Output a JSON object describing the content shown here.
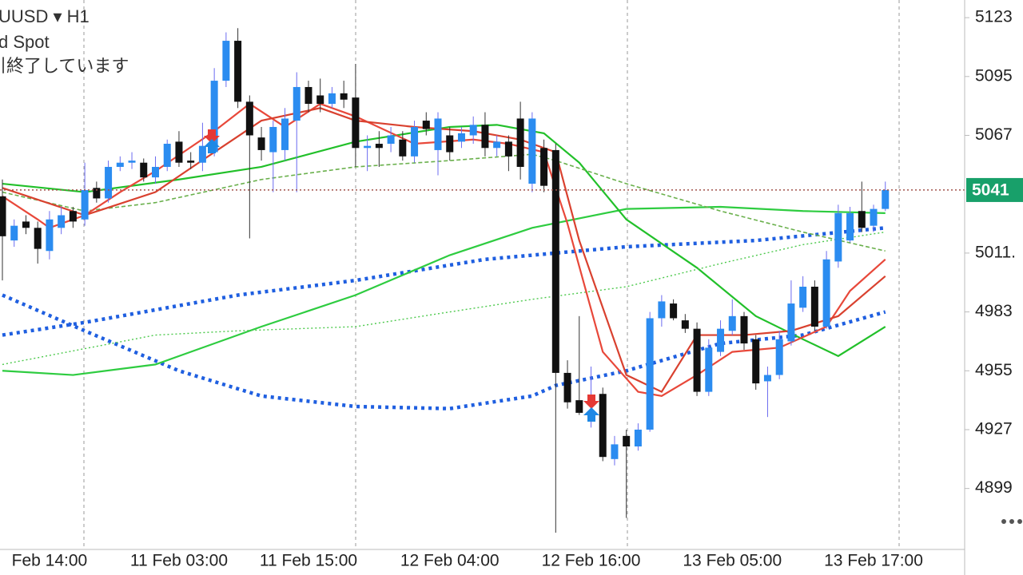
{
  "chart_data": {
    "type": "candlestick",
    "title": "UUSD ▾ H1",
    "subtitle": "d Spot",
    "status": "引終了しています",
    "categories": [
      null,
      null,
      null,
      null,
      "Feb 14:00",
      null,
      null,
      null,
      null,
      null,
      null,
      null,
      null,
      null,
      null,
      "11 Feb 03:00",
      null,
      null,
      null,
      null,
      null,
      null,
      null,
      null,
      null,
      null,
      "11 Feb 15:00",
      null,
      null,
      null,
      null,
      null,
      null,
      null,
      null,
      null,
      null,
      null,
      "12 Feb 04:00",
      null,
      null,
      null,
      null,
      null,
      null,
      null,
      null,
      null,
      null,
      null,
      "12 Feb 16:00",
      null,
      null,
      null,
      null,
      null,
      null,
      null,
      null,
      null,
      null,
      null,
      "13 Feb 05:00",
      null,
      null,
      null,
      null,
      null,
      null,
      null,
      null,
      null,
      null,
      null,
      "13 Feb 17:00",
      null
    ],
    "open": [
      5038,
      5017,
      5026,
      5023,
      5012,
      5023,
      5031,
      5027,
      5042,
      5037,
      5052,
      5054,
      5054,
      5047,
      5052,
      5064,
      5055,
      5054,
      5059,
      5093,
      5112,
      5083,
      5066,
      5059,
      5060,
      5074,
      5090,
      5086,
      5082,
      5087,
      5085,
      5061,
      5063,
      5063,
      5065,
      5057,
      5074,
      5060,
      5067,
      5064,
      5067,
      5072,
      5061,
      5064,
      5075,
      5044,
      5061,
      5060,
      4954,
      4941,
      4931,
      4944,
      4913,
      4924,
      4919,
      4927,
      4980,
      4987,
      4979,
      4975,
      4945,
      4964,
      4974,
      4981,
      4970,
      4950,
      4953,
      4969,
      4985,
      4995,
      4976,
      5007,
      5017,
      5031,
      5024,
      5032
    ],
    "high": [
      5046,
      5027,
      5029,
      5026,
      5031,
      5033,
      5033,
      5054,
      5045,
      5055,
      5057,
      5059,
      5056,
      5057,
      5065,
      5069,
      5059,
      5073,
      5099,
      5116,
      5118,
      5086,
      5071,
      5074,
      5080,
      5097,
      5093,
      5094,
      5090,
      5093,
      5101,
      5067,
      5069,
      5071,
      5069,
      5074,
      5078,
      5078,
      5071,
      5071,
      5076,
      5078,
      5067,
      5067,
      5083,
      5078,
      5065,
      5063,
      4960,
      4981,
      4957,
      4947,
      4924,
      4927,
      4930,
      4983,
      4991,
      4989,
      4982,
      4978,
      4970,
      4979,
      4989,
      4983,
      4972,
      4957,
      4974,
      4998,
      5000,
      4998,
      5012,
      5034,
      5033,
      5045,
      5034,
      5045
    ],
    "low": [
      4998,
      5014,
      5020,
      5006,
      5008,
      5020,
      5023,
      5024,
      5035,
      5035,
      5050,
      5051,
      5045,
      5044,
      5050,
      5052,
      5051,
      5050,
      5057,
      5090,
      5080,
      5018,
      5055,
      5040,
      5055,
      5040,
      5078,
      5078,
      5080,
      5080,
      5052,
      5050,
      5052,
      5059,
      5055,
      5054,
      5067,
      5048,
      5055,
      5061,
      5063,
      5057,
      5057,
      5050,
      5046,
      5040,
      5040,
      4878,
      4937,
      4934,
      4928,
      4912,
      4910,
      4885,
      4917,
      4926,
      4976,
      4979,
      4973,
      4943,
      4943,
      4962,
      4972,
      4965,
      4946,
      4933,
      4951,
      4967,
      4983,
      4974,
      4975,
      5004,
      5016,
      5021,
      5021,
      5031
    ],
    "close": [
      5019,
      5024,
      5023,
      5013,
      5027,
      5029,
      5026,
      5041,
      5037,
      5052,
      5054,
      5055,
      5047,
      5052,
      5063,
      5054,
      5054,
      5062,
      5093,
      5112,
      5083,
      5067,
      5060,
      5071,
      5075,
      5090,
      5082,
      5082,
      5087,
      5084,
      5061,
      5062,
      5061,
      5067,
      5057,
      5071,
      5070,
      5075,
      5059,
      5068,
      5072,
      5061,
      5064,
      5057,
      5052,
      5075,
      5043,
      4954,
      4940,
      4935,
      4935,
      4914,
      4920,
      4919,
      4927,
      4980,
      4988,
      4980,
      4975,
      4945,
      4966,
      4975,
      4981,
      4968,
      4949,
      4953,
      4970,
      4987,
      4995,
      4976,
      5008,
      5030,
      5030,
      5023,
      5032,
      5041
    ],
    "up_color": "#2b8cf0",
    "down_color": "#111111",
    "ylim": [
      4870,
      5131.4
    ],
    "yticks": [
      5123,
      5095,
      5067,
      {
        "value": 5011,
        "label": "5011."
      },
      4983,
      4955,
      4927,
      4899
    ],
    "current_price": 5041,
    "current_price_color": "#18a06a",
    "overlays": [
      {
        "color": "#1f5fe0",
        "style": "dotted-thick",
        "x": [
          0,
          7,
          20,
          30,
          41,
          53,
          64,
          75
        ],
        "values": [
          4972,
          4978,
          4991,
          4998,
          5008,
          5014,
          5017,
          5023
        ]
      },
      {
        "color": "#1f5fe0",
        "style": "dotted-thick",
        "x": [
          0,
          7,
          15,
          22,
          30,
          38,
          45,
          47,
          53,
          61,
          68,
          75
        ],
        "values": [
          4991,
          4974,
          4955,
          4943,
          4938,
          4937,
          4943,
          4948,
          4955,
          4968,
          4972,
          4983
        ]
      },
      {
        "color": "#2ecc40",
        "style": "solid",
        "x": [
          0,
          6,
          13,
          22,
          30,
          38,
          45,
          53,
          61,
          68,
          75
        ],
        "values": [
          4955,
          4953,
          4958,
          4976,
          4991,
          5010,
          5023,
          5032,
          5033,
          5031,
          5030
        ]
      },
      {
        "color": "#22c02a",
        "style": "solid",
        "x": [
          0,
          7,
          15,
          22,
          30,
          38,
          42,
          46,
          49,
          53,
          59,
          64,
          68,
          71,
          75
        ],
        "values": [
          5044,
          5040,
          5046,
          5052,
          5064,
          5071,
          5072,
          5068,
          5054,
          5027,
          5004,
          4981,
          4970,
          4962,
          4976
        ]
      },
      {
        "color": "#6ab04c",
        "style": "dashed",
        "x": [
          0,
          7,
          13,
          22,
          30,
          38,
          45,
          47,
          53,
          61,
          68,
          75
        ],
        "values": [
          5040,
          5031,
          5035,
          5046,
          5052,
          5055,
          5058,
          5055,
          5044,
          5031,
          5021,
          5012
        ]
      },
      {
        "color": "#4cc94c",
        "style": "dotted",
        "x": [
          0,
          13,
          20,
          30,
          38,
          45,
          53,
          61,
          68,
          75
        ],
        "values": [
          4958,
          4972,
          4974,
          4976,
          4983,
          4989,
          4995,
          5006,
          5015,
          5021
        ]
      },
      {
        "color": "#e8483a",
        "style": "solid",
        "x": [
          0,
          3,
          4,
          7,
          10,
          13,
          18,
          21,
          24,
          27,
          30,
          35,
          40,
          43,
          46,
          48,
          51,
          54,
          56,
          59,
          62,
          66,
          70,
          72,
          75
        ],
        "values": [
          5038,
          5027,
          5023,
          5029,
          5040,
          5050,
          5069,
          5082,
          5071,
          5082,
          5076,
          5063,
          5065,
          5063,
          5059,
          5025,
          4964,
          4945,
          4943,
          4953,
          4964,
          4966,
          4976,
          4993,
          5008
        ]
      },
      {
        "color": "#d9412f",
        "style": "solid",
        "x": [
          0,
          7,
          13,
          18,
          22,
          27,
          30,
          35,
          40,
          44,
          47,
          49,
          53,
          56,
          59,
          63,
          67,
          71,
          75
        ],
        "values": [
          5042,
          5029,
          5040,
          5059,
          5074,
          5080,
          5074,
          5071,
          5069,
          5065,
          5059,
          5017,
          4953,
          4945,
          4972,
          4972,
          4974,
          4981,
          5000
        ]
      }
    ]
  }
}
